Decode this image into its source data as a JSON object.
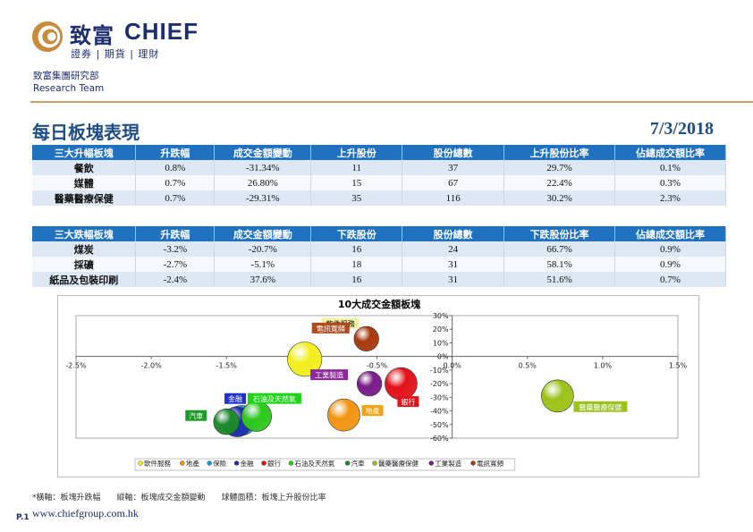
{
  "header": {
    "logo_cn": "致富",
    "logo_en": "CHIEF",
    "logo_sub": "證券 | 期貨 | 理財",
    "dept_cn": "致富集團研究部",
    "dept_en": "Research Team"
  },
  "page": {
    "title": "每日板塊表現",
    "date": "7/3/2018"
  },
  "top_table": {
    "headers": [
      "三大升幅板塊",
      "升跌幅",
      "成交金額變動",
      "上升股份",
      "股份總數",
      "上升股份比率",
      "佔總成交額比率"
    ],
    "rows": [
      [
        "餐飲",
        "0.8%",
        "-31.34%",
        "11",
        "37",
        "29.7%",
        "0.1%"
      ],
      [
        "媒體",
        "0.7%",
        "26.80%",
        "15",
        "67",
        "22.4%",
        "0.3%"
      ],
      [
        "醫藥醫療保健",
        "0.7%",
        "-29.31%",
        "35",
        "116",
        "30.2%",
        "2.3%"
      ]
    ]
  },
  "bottom_table": {
    "headers": [
      "三大跌幅板塊",
      "升跌幅",
      "成交金額變動",
      "下跌股份",
      "股份總數",
      "下跌股份比率",
      "佔總成交額比率"
    ],
    "rows": [
      [
        "煤炭",
        "-3.2%",
        "-20.7%",
        "16",
        "24",
        "66.7%",
        "0.9%"
      ],
      [
        "採礦",
        "-2.7%",
        "-5.1%",
        "18",
        "31",
        "58.1%",
        "0.9%"
      ],
      [
        "紙品及包裝印刷",
        "-2.4%",
        "37.6%",
        "16",
        "31",
        "51.6%",
        "0.7%"
      ]
    ]
  },
  "chart_data": {
    "type": "scatter",
    "title": "10大成交金額板塊",
    "xlabel": "",
    "ylabel": "",
    "xlim": [
      -2.5,
      1.5
    ],
    "ylim": [
      -60,
      30
    ],
    "x_ticks": [
      "-2.5%",
      "-2.0%",
      "-1.5%",
      "-1.0%",
      "-0.5%",
      "0.0%",
      "0.5%",
      "1.0%",
      "1.5%"
    ],
    "y_ticks": [
      "30%",
      "20%",
      "10%",
      "0%",
      "-10%",
      "-20%",
      "-30%",
      "-40%",
      "-50%",
      "-60%"
    ],
    "legend_position": "bottom",
    "series": [
      {
        "name": "軟件服務",
        "x": -0.98,
        "y": -2,
        "size": 32,
        "color": "#f2ee1e"
      },
      {
        "name": "地產",
        "x": -0.72,
        "y": -43,
        "size": 30,
        "color": "#f29412"
      },
      {
        "name": "保險",
        "x": -1.4,
        "y": -47,
        "size": 28,
        "color": "#1a9bd9"
      },
      {
        "name": "金融",
        "x": -1.43,
        "y": -48,
        "size": 28,
        "color": "#1f2fae"
      },
      {
        "name": "銀行",
        "x": -0.34,
        "y": -20,
        "size": 30,
        "color": "#e3121a"
      },
      {
        "name": "石油及天然氣",
        "x": -1.3,
        "y": -44,
        "size": 28,
        "color": "#2dc81e"
      },
      {
        "name": "汽車",
        "x": -1.5,
        "y": -48,
        "size": 24,
        "color": "#1c8a2a"
      },
      {
        "name": "醫藥醫療保健",
        "x": 0.7,
        "y": -29,
        "size": 30,
        "color": "#9dc21a"
      },
      {
        "name": "工業製造",
        "x": -0.55,
        "y": -20,
        "size": 23,
        "color": "#7a1c8a"
      },
      {
        "name": "電訊寬頻",
        "x": -0.57,
        "y": 13,
        "size": 23,
        "color": "#a83a0e"
      }
    ],
    "point_labels": [
      {
        "name": "軟件服務",
        "bg": "#f4f1a6"
      },
      {
        "name": "電訊寬頻",
        "bg": "#b34a1e"
      },
      {
        "name": "工業製造",
        "bg": "#8c2a9a"
      },
      {
        "name": "銀行",
        "bg": "#e3121a"
      },
      {
        "name": "金融",
        "bg": "#2032c8"
      },
      {
        "name": "石油及天然氣",
        "bg": "#22d11a"
      },
      {
        "name": "汽車",
        "bg": "#1c9a2a"
      },
      {
        "name": "地產",
        "bg": "#f2a212"
      },
      {
        "name": "醫藥醫療保健",
        "bg": "#9dc21a"
      }
    ]
  },
  "footnote": "*橫軸：板塊升跌幅　　縱軸：板塊成交金額變動　　球體面積：板塊上升股份比率",
  "footer": {
    "url": "www.chiefgroup.com.hk",
    "page": "P.1"
  }
}
